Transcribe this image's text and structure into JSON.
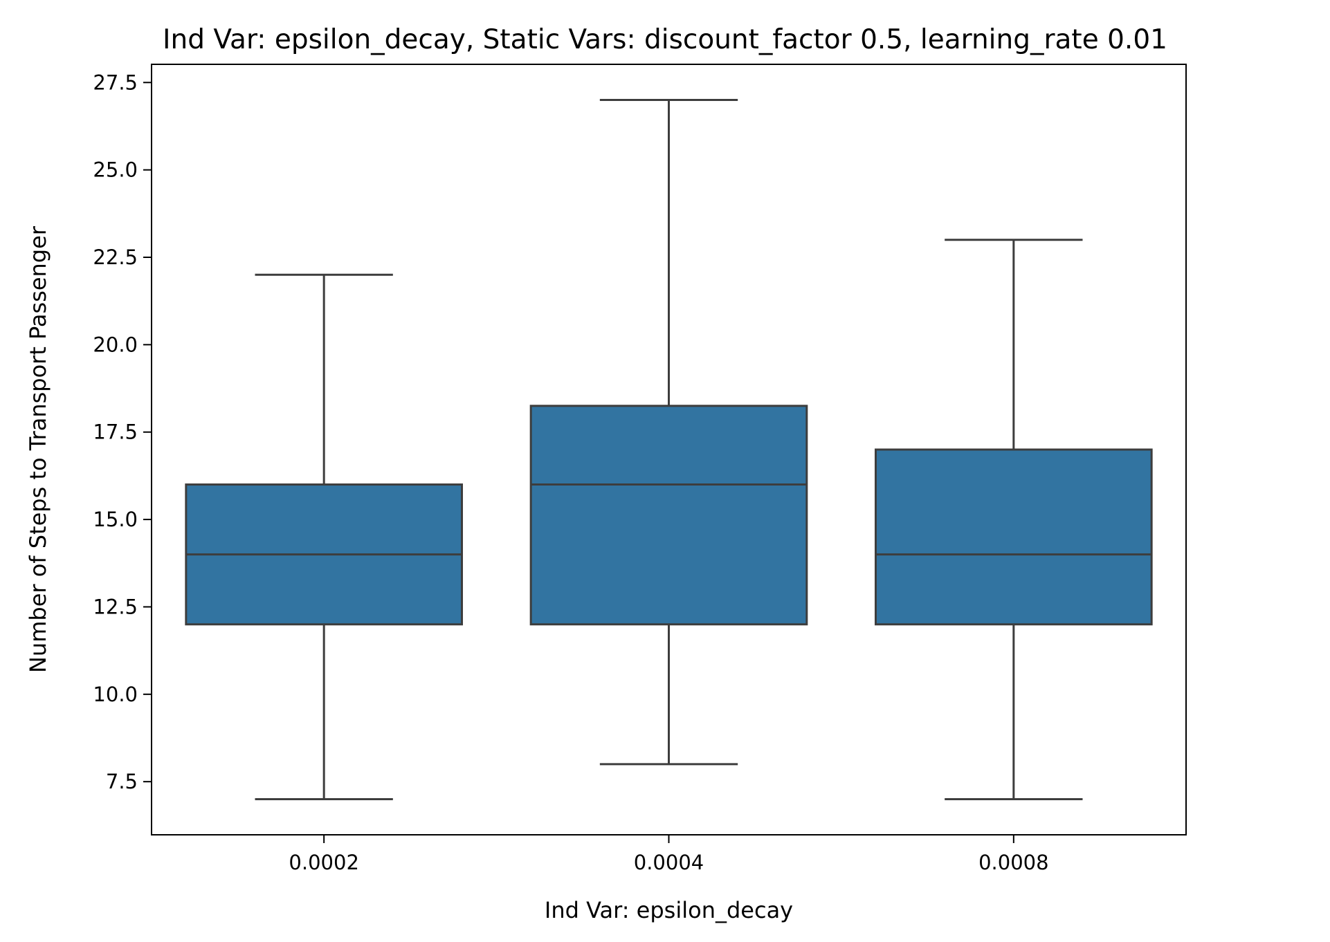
{
  "chart_data": {
    "type": "box",
    "title": "Ind Var: epsilon_decay, Static Vars: discount_factor 0.5, learning_rate 0.01",
    "xlabel": "Ind Var: epsilon_decay",
    "ylabel": "Number of Steps to Transport Passenger",
    "categories": [
      "0.0002",
      "0.0004",
      "0.0008"
    ],
    "boxes": [
      {
        "category": "0.0002",
        "whisker_low": 7,
        "q1": 12,
        "median": 14,
        "q3": 16,
        "whisker_high": 22
      },
      {
        "category": "0.0004",
        "whisker_low": 8,
        "q1": 12,
        "median": 16,
        "q3": 18.25,
        "whisker_high": 27
      },
      {
        "category": "0.0008",
        "whisker_low": 7,
        "q1": 12,
        "median": 14,
        "q3": 17,
        "whisker_high": 23
      }
    ],
    "ylim": [
      5.98,
      28.02
    ],
    "yticks": [
      7.5,
      10.0,
      12.5,
      15.0,
      17.5,
      20.0,
      22.5,
      25.0,
      27.5
    ],
    "ytick_labels": [
      "7.5",
      "10.0",
      "12.5",
      "15.0",
      "17.5",
      "20.0",
      "22.5",
      "25.0",
      "27.5"
    ],
    "grid": false,
    "colors": {
      "box_fill": "#3274a1",
      "box_edge": "#3d3d3d"
    }
  }
}
